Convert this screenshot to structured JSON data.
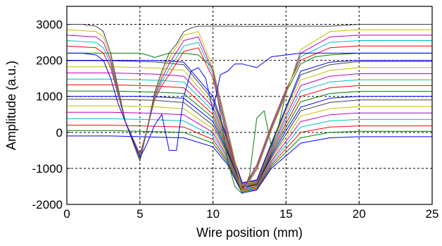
{
  "chart_data": {
    "type": "line",
    "title": "",
    "xlabel": "Wire position (mm)",
    "ylabel": "Amplitude (a.u.)",
    "xlim": [
      0,
      25
    ],
    "ylim": [
      -2000,
      3500
    ],
    "x_ticks": [
      0,
      5,
      10,
      15,
      20,
      25
    ],
    "y_ticks": [
      -2000,
      -1000,
      0,
      1000,
      2000,
      3000
    ],
    "x_tick_labels": [
      "0",
      "5",
      "10",
      "15",
      "20",
      "25"
    ],
    "y_tick_labels": [
      "-2000",
      "-1000",
      "0",
      "1000",
      "2000",
      "3000"
    ],
    "grid": true,
    "grid_style": "dashed",
    "legend": "none",
    "colors": [
      "#0000ff",
      "#008000",
      "#ff0000",
      "#00bfbf",
      "#bf00bf",
      "#bfbf00",
      "#404040"
    ],
    "series": [
      {
        "x": [
          0,
          2,
          3,
          4,
          5,
          6,
          8,
          10,
          11,
          12,
          13,
          14,
          15,
          16,
          18,
          20,
          25
        ],
        "y": [
          -100,
          -100,
          -100,
          -110,
          -120,
          -130,
          -150,
          -400,
          -900,
          -1680,
          -1600,
          -1000,
          -650,
          -300,
          -150,
          -120,
          -120
        ]
      },
      {
        "x": [
          0,
          2,
          3,
          4,
          5,
          6,
          8,
          10,
          11,
          12,
          13,
          14,
          15,
          16,
          18,
          20,
          25
        ],
        "y": [
          50,
          50,
          50,
          40,
          30,
          20,
          0,
          -300,
          -850,
          -1650,
          -1580,
          -950,
          -550,
          -150,
          0,
          30,
          30
        ]
      },
      {
        "x": [
          0,
          2,
          3,
          4,
          5,
          6,
          8,
          10,
          11,
          12,
          13,
          14,
          15,
          16,
          18,
          20,
          25
        ],
        "y": [
          200,
          200,
          200,
          190,
          180,
          170,
          150,
          -200,
          -800,
          -1620,
          -1550,
          -900,
          -450,
          0,
          150,
          180,
          180
        ]
      },
      {
        "x": [
          0,
          2,
          3,
          4,
          5,
          6,
          8,
          10,
          11,
          12,
          13,
          14,
          15,
          16,
          18,
          20,
          25
        ],
        "y": [
          380,
          380,
          380,
          370,
          360,
          350,
          320,
          -100,
          -750,
          -1600,
          -1520,
          -850,
          -350,
          150,
          320,
          360,
          360
        ]
      },
      {
        "x": [
          0,
          2,
          3,
          4,
          5,
          6,
          8,
          10,
          11,
          12,
          13,
          14,
          15,
          16,
          18,
          20,
          25
        ],
        "y": [
          560,
          560,
          560,
          550,
          540,
          530,
          490,
          0,
          -700,
          -1580,
          -1500,
          -800,
          -250,
          300,
          490,
          540,
          540
        ]
      },
      {
        "x": [
          0,
          2,
          3,
          4,
          5,
          6,
          8,
          10,
          11,
          12,
          13,
          14,
          15,
          16,
          18,
          20,
          25
        ],
        "y": [
          740,
          740,
          740,
          730,
          720,
          710,
          660,
          100,
          -650,
          -1560,
          -1480,
          -750,
          -150,
          450,
          660,
          720,
          720
        ]
      },
      {
        "x": [
          0,
          2,
          3,
          4,
          5,
          6,
          8,
          10,
          11,
          12,
          13,
          14,
          15,
          16,
          18,
          20,
          25
        ],
        "y": [
          920,
          920,
          920,
          910,
          900,
          890,
          830,
          200,
          -600,
          -1540,
          -1460,
          -700,
          -50,
          600,
          830,
          900,
          900
        ]
      },
      {
        "x": [
          0,
          2,
          3,
          4,
          5,
          6,
          8,
          10,
          11,
          12,
          13,
          14,
          15,
          16,
          18,
          20,
          25
        ],
        "y": [
          1000,
          1000,
          1000,
          1000,
          1000,
          990,
          950,
          300,
          -550,
          -1530,
          -1450,
          -650,
          50,
          700,
          950,
          1000,
          1000
        ]
      },
      {
        "x": [
          0,
          2,
          3,
          4,
          5,
          6,
          8,
          10,
          11,
          12,
          13,
          14,
          15,
          16,
          18,
          20,
          25
        ],
        "y": [
          1150,
          1150,
          1150,
          1140,
          1130,
          1120,
          1080,
          400,
          -500,
          -1520,
          -1440,
          -600,
          150,
          850,
          1080,
          1140,
          1140
        ]
      },
      {
        "x": [
          0,
          2,
          3,
          4,
          5,
          6,
          8,
          10,
          11,
          12,
          13,
          14,
          15,
          16,
          18,
          20,
          25
        ],
        "y": [
          1320,
          1320,
          1320,
          1310,
          1300,
          1290,
          1240,
          500,
          -450,
          -1500,
          -1420,
          -550,
          250,
          1000,
          1240,
          1300,
          1300
        ]
      },
      {
        "x": [
          0,
          2,
          3,
          4,
          5,
          6,
          8,
          10,
          11,
          12,
          13,
          14,
          15,
          16,
          18,
          20,
          25
        ],
        "y": [
          1480,
          1480,
          1480,
          1470,
          1460,
          1450,
          1400,
          600,
          -400,
          -1480,
          -1400,
          -500,
          350,
          1150,
          1400,
          1460,
          1460
        ]
      },
      {
        "x": [
          0,
          2,
          3,
          4,
          5,
          6,
          8,
          10,
          11,
          12,
          13,
          14,
          15,
          16,
          18,
          20,
          25
        ],
        "y": [
          1650,
          1650,
          1650,
          1640,
          1630,
          1620,
          1560,
          700,
          -350,
          -1460,
          -1380,
          -450,
          450,
          1300,
          1560,
          1630,
          1630
        ]
      },
      {
        "x": [
          0,
          2,
          3,
          4,
          5,
          6,
          8,
          10,
          11,
          12,
          13,
          14,
          15,
          16,
          18,
          20,
          25
        ],
        "y": [
          1820,
          1820,
          1820,
          1810,
          1800,
          1790,
          1720,
          800,
          -300,
          -1440,
          -1360,
          -400,
          550,
          1450,
          1720,
          1800,
          1800
        ]
      },
      {
        "x": [
          0,
          2,
          3,
          4,
          5,
          6,
          8,
          10,
          11,
          12,
          13,
          14,
          15,
          16,
          18,
          20,
          25
        ],
        "y": [
          1990,
          1990,
          1990,
          1980,
          1970,
          1960,
          1880,
          900,
          -250,
          -1420,
          -1340,
          -350,
          650,
          1600,
          1880,
          1970,
          1970
        ]
      },
      {
        "x": [
          0,
          2,
          3,
          4,
          5,
          6,
          8,
          10,
          11,
          12,
          13,
          14,
          15,
          16,
          18,
          20,
          25
        ],
        "y": [
          2000,
          2000,
          2000,
          2000,
          2000,
          2000,
          1950,
          1000,
          -200,
          -1400,
          -1320,
          -300,
          700,
          1700,
          1950,
          2000,
          2000
        ]
      },
      {
        "x": [
          0,
          1,
          2,
          3,
          4,
          5,
          5.5,
          6,
          7,
          8,
          9,
          10,
          11,
          11.5,
          12,
          12.5,
          13,
          13.5,
          14,
          14.5,
          15,
          16,
          17,
          18,
          20,
          25
        ],
        "y": [
          2200,
          2200,
          2200,
          2200,
          2200,
          2200,
          2150,
          2080,
          2200,
          2200,
          2150,
          1800,
          -800,
          -1500,
          -1700,
          -1200,
          400,
          600,
          -400,
          200,
          1100,
          1900,
          2100,
          2150,
          2200,
          2200
        ]
      },
      {
        "x": [
          0,
          2,
          2.5,
          3,
          4,
          5,
          5.5,
          6,
          6.5,
          7,
          8,
          9,
          10,
          11,
          12,
          13,
          14,
          15,
          16,
          18,
          20,
          25
        ],
        "y": [
          2400,
          2350,
          2200,
          1800,
          300,
          -600,
          100,
          900,
          1300,
          1600,
          2250,
          2350,
          1500,
          -200,
          -1600,
          -900,
          200,
          1200,
          2000,
          2350,
          2400,
          2400
        ]
      },
      {
        "x": [
          0,
          2,
          2.5,
          3,
          4,
          5,
          5.5,
          6,
          6.5,
          7,
          8,
          9,
          10,
          11,
          12,
          13,
          14,
          15,
          16,
          18,
          20,
          25
        ],
        "y": [
          2550,
          2500,
          2350,
          1900,
          300,
          -650,
          100,
          950,
          1400,
          1750,
          2400,
          2500,
          1600,
          -100,
          -1620,
          -950,
          150,
          1150,
          2100,
          2500,
          2550,
          2550
        ]
      },
      {
        "x": [
          0,
          2,
          2.5,
          3,
          4,
          5,
          5.5,
          6,
          6.5,
          7,
          8,
          9,
          10,
          11,
          12,
          13,
          14,
          15,
          16,
          18,
          20,
          25
        ],
        "y": [
          2700,
          2650,
          2500,
          2000,
          300,
          -700,
          100,
          1000,
          1500,
          1900,
          2550,
          2650,
          1700,
          0,
          -1640,
          -1000,
          100,
          1100,
          2200,
          2650,
          2700,
          2700
        ]
      },
      {
        "x": [
          0,
          2,
          2.5,
          3,
          4,
          5,
          5.5,
          6,
          6.5,
          7,
          8,
          9,
          10,
          11,
          12,
          13,
          14,
          15,
          16,
          18,
          20,
          25
        ],
        "y": [
          2850,
          2800,
          2650,
          2100,
          300,
          -750,
          100,
          1050,
          1600,
          2050,
          2700,
          2800,
          1800,
          100,
          -1660,
          -1050,
          50,
          1050,
          2300,
          2800,
          2850,
          2850
        ]
      },
      {
        "x": [
          0,
          1,
          2,
          2.5,
          3,
          4,
          5,
          5.5,
          6,
          6.5,
          7,
          7.5,
          8,
          8.5,
          9,
          9.5,
          10,
          11,
          12,
          13,
          14,
          15,
          16,
          18,
          20,
          25
        ],
        "y": [
          3000,
          3000,
          2950,
          2800,
          2200,
          300,
          -800,
          100,
          1100,
          1700,
          2200,
          2450,
          2800,
          2900,
          2950,
          2950,
          2950,
          2950,
          2950,
          2950,
          2950,
          2950,
          2950,
          2950,
          3000,
          3000
        ]
      },
      {
        "x": [
          0,
          1,
          2,
          2.5,
          3,
          3.5,
          4,
          4.5,
          5,
          5.5,
          6,
          6.5,
          7,
          7.5,
          8,
          8.5,
          9,
          9.5,
          10,
          10.5,
          11,
          11.5,
          12,
          12.5,
          13,
          14,
          15,
          16,
          18,
          20,
          25
        ],
        "y": [
          2200,
          2200,
          2150,
          2000,
          1500,
          800,
          300,
          -200,
          -700,
          -300,
          200,
          500,
          -500,
          -500,
          1000,
          1700,
          1800,
          1500,
          600,
          1600,
          1700,
          1900,
          1900,
          1850,
          1800,
          2100,
          2150,
          2200,
          2200,
          2200,
          2200
        ]
      }
    ]
  }
}
